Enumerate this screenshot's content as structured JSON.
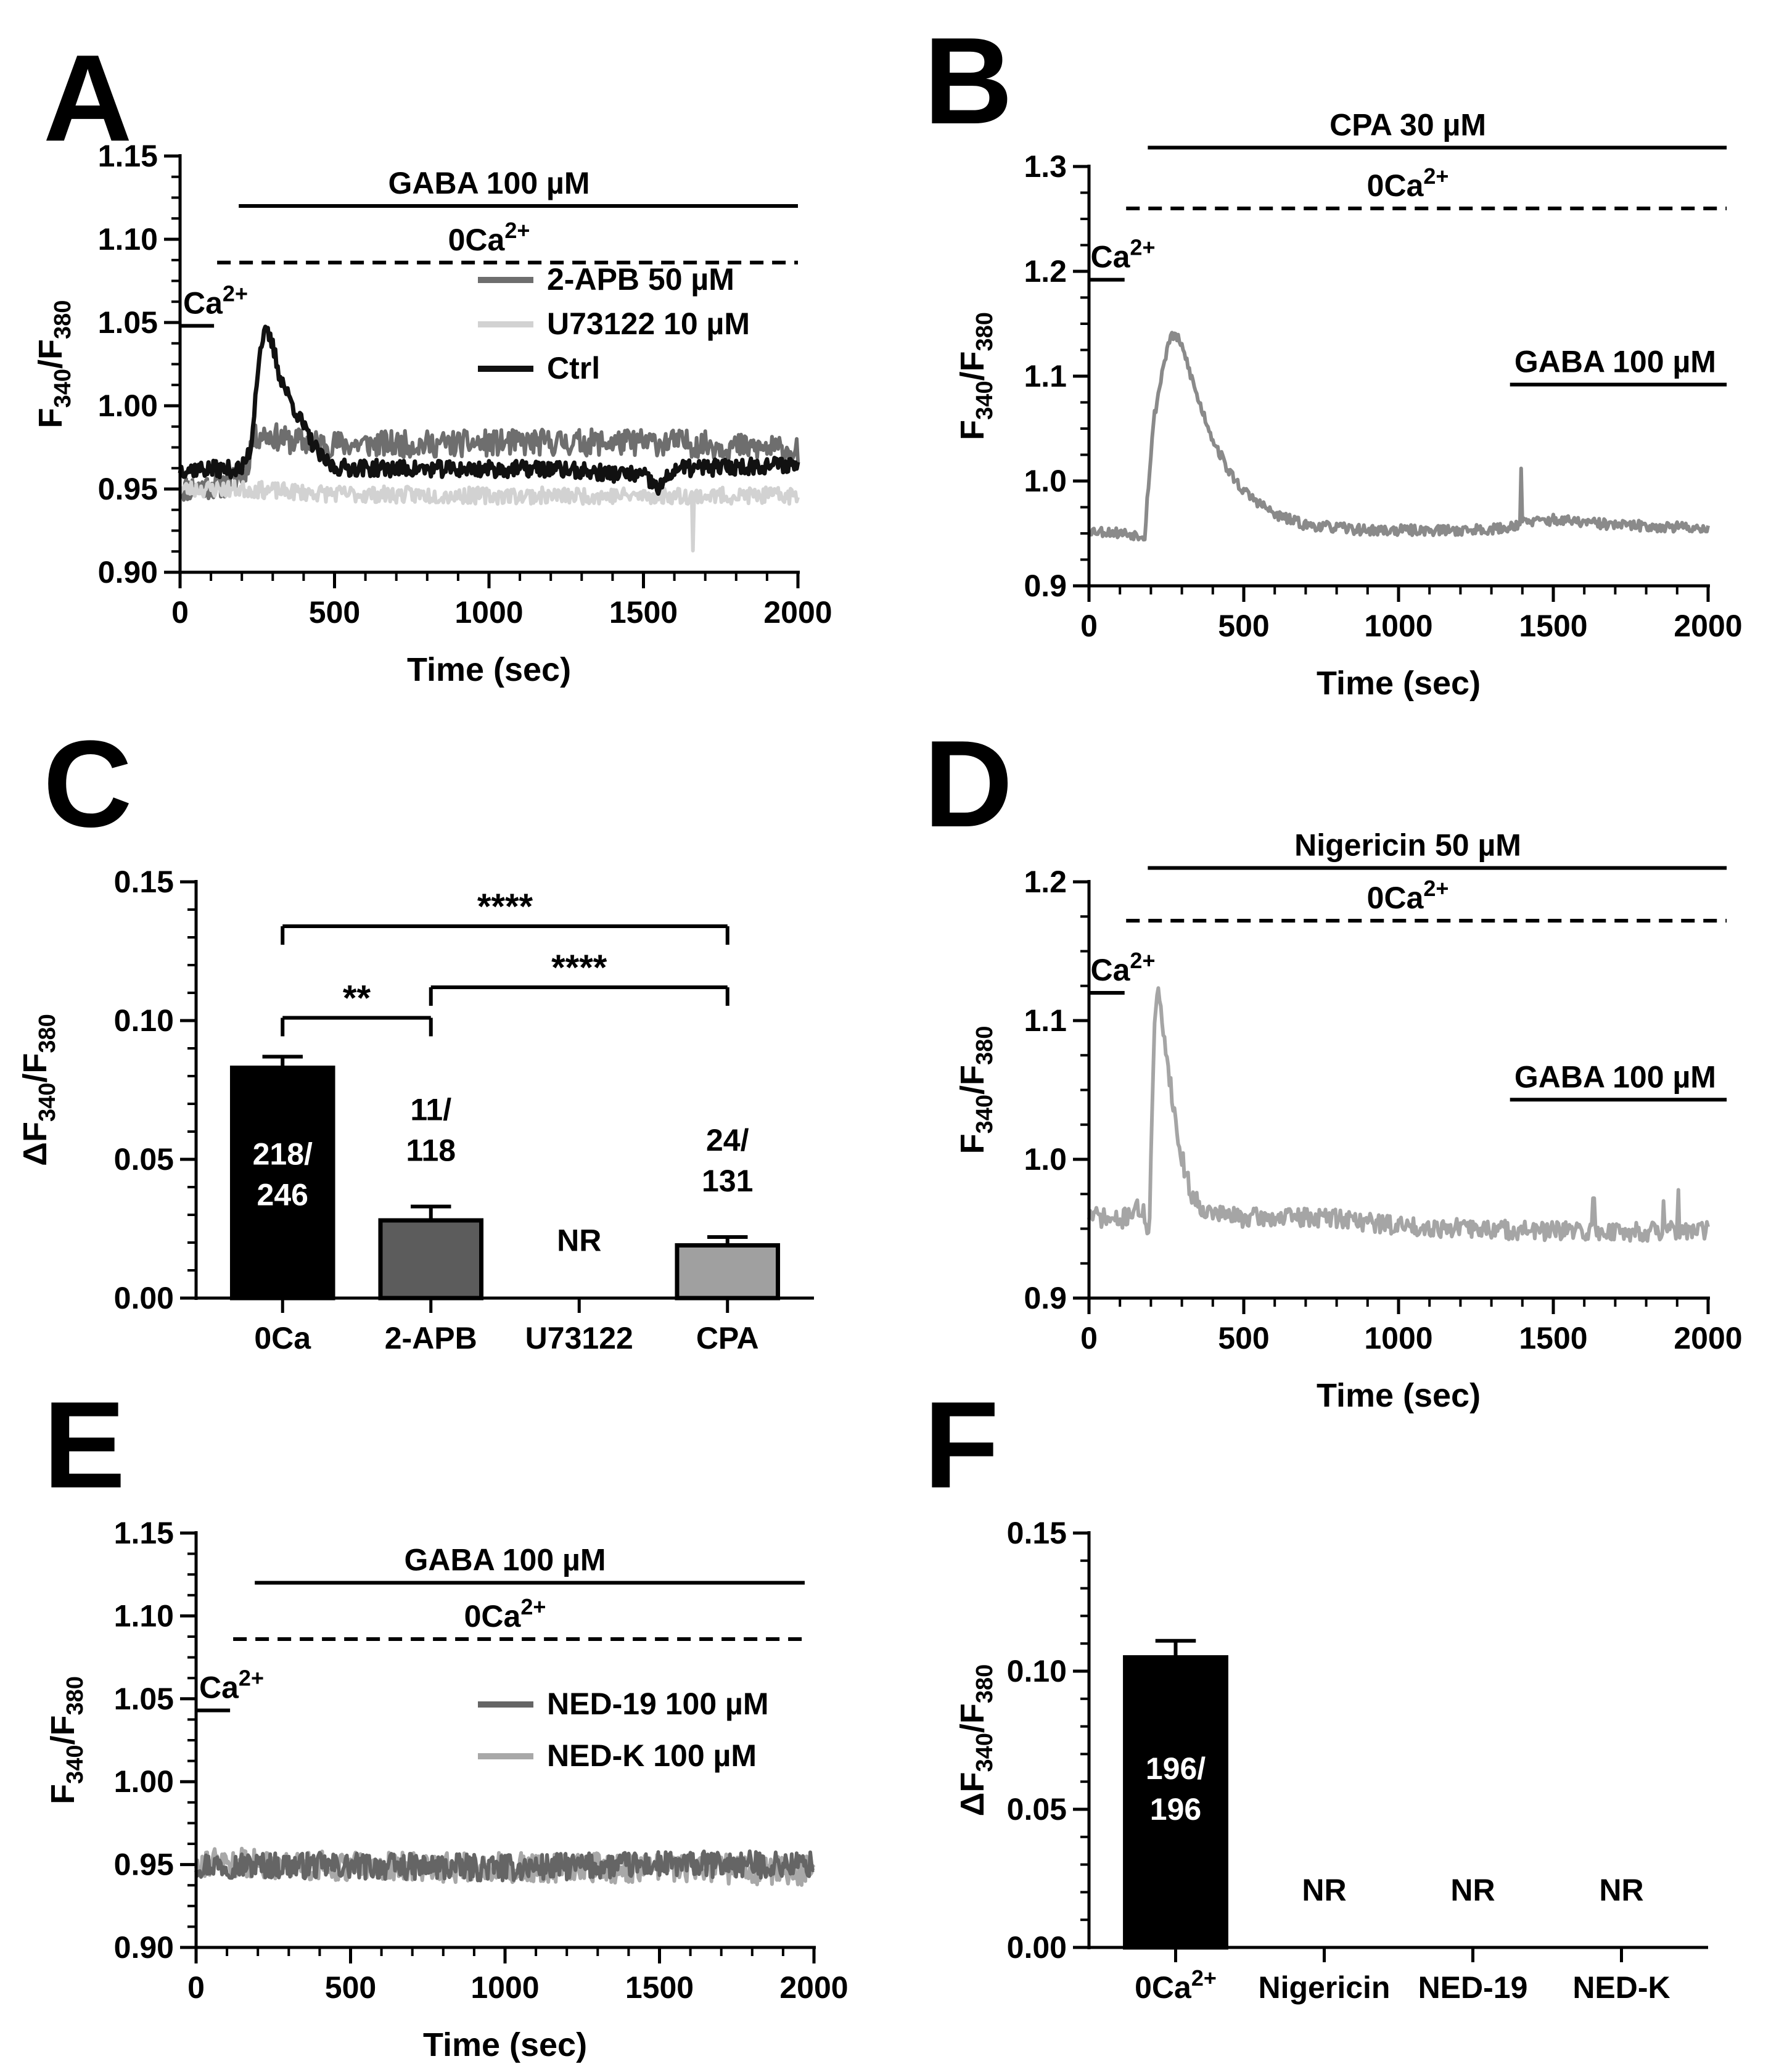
{
  "figure": {
    "panels": [
      "A",
      "B",
      "C",
      "D",
      "E",
      "F"
    ]
  },
  "colors": {
    "ctrl": "#111111",
    "twoapb": "#6e6e6e",
    "u73122": "#d2d2d2",
    "cpa": "#8a8a8a",
    "nigericin": "#a5a5a5",
    "ned19": "#656565",
    "nedk": "#a8a8a8",
    "bar_0ca": "#000000",
    "bar_2apb": "#5c5c5c",
    "bar_cpa": "#a0a0a0"
  },
  "chart_data": [
    {
      "id": "A",
      "type": "line",
      "letter": "A",
      "xlabel": "Time (sec)",
      "ylabel_main": "F",
      "ylabel_sub1": "340",
      "ylabel_sep": "/F",
      "ylabel_sub2": "380",
      "xlim": [
        0,
        2000
      ],
      "ylim": [
        0.9,
        1.15
      ],
      "xticks": [
        0,
        500,
        1000,
        1500,
        2000
      ],
      "xtick_labels": [
        "0",
        "500",
        "1000",
        "1500",
        "2000"
      ],
      "yticks": [
        0.9,
        0.95,
        1.0,
        1.05,
        1.1,
        1.15
      ],
      "ytick_labels": [
        "0.90",
        "0.95",
        "1.00",
        "1.05",
        "1.10",
        "1.15"
      ],
      "annotations": [
        {
          "text": "GABA 100 µM",
          "x_start": 190,
          "x_end": 2000,
          "y": 1.12,
          "style": "solid",
          "text_x": 1000
        },
        {
          "text": "0Ca",
          "sup": "2+",
          "x_start": 120,
          "x_end": 2000,
          "y": 1.086,
          "style": "dashed",
          "text_x": 1000
        },
        {
          "text": "Ca",
          "sup": "2+",
          "x_start": 0,
          "x_end": 110,
          "y": 1.048,
          "style": "solid",
          "text_x": 10
        }
      ],
      "legend": [
        {
          "label": "2-APB 50 µM",
          "color_key": "twoapb"
        },
        {
          "label": "U73122 10 µM",
          "color_key": "u73122"
        },
        {
          "label": "Ctrl",
          "color_key": "ctrl"
        }
      ],
      "series": [
        {
          "name": "2-APB 50 µM",
          "color_key": "twoapb",
          "seed": 11,
          "noise": 0.008,
          "points": [
            [
              0,
              0.95
            ],
            [
              150,
              0.953
            ],
            [
              200,
              0.958
            ],
            [
              220,
              0.965
            ],
            [
              230,
              0.978
            ],
            [
              260,
              0.983
            ],
            [
              300,
              0.982
            ],
            [
              350,
              0.979
            ],
            [
              500,
              0.977
            ],
            [
              800,
              0.977
            ],
            [
              1200,
              0.978
            ],
            [
              1600,
              0.978
            ],
            [
              2000,
              0.973
            ]
          ]
        },
        {
          "name": "U73122 10 µM",
          "color_key": "u73122",
          "seed": 23,
          "noise": 0.005,
          "points": [
            [
              0,
              0.95
            ],
            [
              200,
              0.95
            ],
            [
              500,
              0.947
            ],
            [
              1000,
              0.946
            ],
            [
              1500,
              0.946
            ],
            [
              1650,
              0.946
            ],
            [
              2000,
              0.946
            ]
          ],
          "spikes": [
            [
              1660,
              0.913
            ]
          ]
        },
        {
          "name": "Ctrl",
          "color_key": "ctrl",
          "seed": 37,
          "noise": 0.005,
          "points": [
            [
              0,
              0.962
            ],
            [
              200,
              0.962
            ],
            [
              230,
              0.975
            ],
            [
              250,
              1.02
            ],
            [
              265,
              1.04
            ],
            [
              280,
              1.044
            ],
            [
              300,
              1.036
            ],
            [
              320,
              1.02
            ],
            [
              350,
              1.006
            ],
            [
              380,
              0.995
            ],
            [
              420,
              0.98
            ],
            [
              460,
              0.968
            ],
            [
              500,
              0.963
            ],
            [
              800,
              0.962
            ],
            [
              1200,
              0.962
            ],
            [
              1500,
              0.958
            ],
            [
              1550,
              0.95
            ],
            [
              1600,
              0.962
            ],
            [
              2000,
              0.965
            ]
          ]
        }
      ]
    },
    {
      "id": "B",
      "type": "line",
      "letter": "B",
      "xlabel": "Time (sec)",
      "ylabel_main": "F",
      "ylabel_sub1": "340",
      "ylabel_sep": "/F",
      "ylabel_sub2": "380",
      "xlim": [
        0,
        2000
      ],
      "ylim": [
        0.9,
        1.3
      ],
      "xticks": [
        0,
        500,
        1000,
        1500,
        2000
      ],
      "xtick_labels": [
        "0",
        "500",
        "1000",
        "1500",
        "2000"
      ],
      "yticks": [
        0.9,
        1.0,
        1.1,
        1.2,
        1.3
      ],
      "ytick_labels": [
        "0.9",
        "1.0",
        "1.1",
        "1.2",
        "1.3"
      ],
      "annotations": [
        {
          "text": "CPA 30 µM",
          "x_start": 190,
          "x_end": 2060,
          "y": 1.318,
          "style": "solid",
          "text_x": 1030
        },
        {
          "text": "0Ca",
          "sup": "2+",
          "x_start": 120,
          "x_end": 2060,
          "y": 1.26,
          "style": "dashed",
          "text_x": 1030
        },
        {
          "text": "Ca",
          "sup": "2+",
          "x_start": 0,
          "x_end": 115,
          "y": 1.192,
          "style": "solid",
          "text_x": 5
        },
        {
          "text": "GABA 100 µM",
          "x_start": 1360,
          "x_end": 2060,
          "y": 1.092,
          "style": "solid",
          "text_x": 1700
        }
      ],
      "legend": [],
      "series": [
        {
          "name": "CPA 30 µM",
          "color_key": "cpa",
          "seed": 53,
          "noise": 0.005,
          "points": [
            [
              0,
              0.953
            ],
            [
              120,
              0.95
            ],
            [
              180,
              0.948
            ],
            [
              190,
              0.99
            ],
            [
              210,
              1.06
            ],
            [
              240,
              1.11
            ],
            [
              260,
              1.135
            ],
            [
              280,
              1.14
            ],
            [
              310,
              1.12
            ],
            [
              350,
              1.08
            ],
            [
              400,
              1.04
            ],
            [
              450,
              1.01
            ],
            [
              500,
              0.99
            ],
            [
              600,
              0.968
            ],
            [
              700,
              0.958
            ],
            [
              900,
              0.953
            ],
            [
              1200,
              0.953
            ],
            [
              1350,
              0.955
            ],
            [
              1390,
              0.96
            ],
            [
              1500,
              0.963
            ],
            [
              1700,
              0.958
            ],
            [
              2000,
              0.955
            ]
          ],
          "spikes": [
            [
              1395,
              1.012
            ]
          ]
        }
      ]
    },
    {
      "id": "C",
      "type": "bar",
      "letter": "C",
      "ylabel_main": "ΔF",
      "ylabel_sub1": "340",
      "ylabel_sep": "/F",
      "ylabel_sub2": "380",
      "ylim": [
        0,
        0.15
      ],
      "yticks": [
        0.0,
        0.05,
        0.1,
        0.15
      ],
      "ytick_labels": [
        "0.00",
        "0.05",
        "0.10",
        "0.15"
      ],
      "categories": [
        "0Ca",
        "2-APB",
        "U73122",
        "CPA"
      ],
      "values": [
        0.083,
        0.028,
        0,
        0.019
      ],
      "errors": [
        0.004,
        0.005,
        0,
        0.003
      ],
      "fill_keys": [
        "bar_0ca",
        "bar_2apb",
        "none",
        "bar_cpa"
      ],
      "bar_labels": [
        {
          "lines": [
            "218/",
            "246"
          ],
          "place": "inside"
        },
        {
          "lines": [
            "11/",
            "118"
          ],
          "place": "above"
        },
        {
          "lines": [
            "NR"
          ],
          "place": "nr"
        },
        {
          "lines": [
            "24/",
            "131"
          ],
          "place": "above"
        }
      ],
      "significance": [
        {
          "from": 0,
          "to": 3,
          "y": 0.134,
          "text": "****",
          "drop_from": 0.089,
          "drop_to": 0.134
        },
        {
          "from": 1,
          "to": 3,
          "y": 0.112,
          "text": "****",
          "drop_from": 0.1,
          "drop_to": 0.112
        },
        {
          "from": 0,
          "to": 1,
          "y": 0.101,
          "text": "**",
          "drop_from": 0.095,
          "drop_to": 0.094
        }
      ]
    },
    {
      "id": "D",
      "type": "line",
      "letter": "D",
      "xlabel": "Time (sec)",
      "ylabel_main": "F",
      "ylabel_sub1": "340",
      "ylabel_sep": "/F",
      "ylabel_sub2": "380",
      "xlim": [
        0,
        2000
      ],
      "ylim": [
        0.9,
        1.2
      ],
      "xticks": [
        0,
        500,
        1000,
        1500,
        2000
      ],
      "xtick_labels": [
        "0",
        "500",
        "1000",
        "1500",
        "2000"
      ],
      "yticks": [
        0.9,
        1.0,
        1.1,
        1.2
      ],
      "ytick_labels": [
        "0.9",
        "1.0",
        "1.1",
        "1.2"
      ],
      "annotations": [
        {
          "text": "Nigericin 50 µM",
          "x_start": 190,
          "x_end": 2060,
          "y": 1.21,
          "style": "solid",
          "text_x": 1030
        },
        {
          "text": "0Ca",
          "sup": "2+",
          "x_start": 120,
          "x_end": 2060,
          "y": 1.172,
          "style": "dashed",
          "text_x": 1030
        },
        {
          "text": "Ca",
          "sup": "2+",
          "x_start": 0,
          "x_end": 115,
          "y": 1.12,
          "style": "solid",
          "text_x": 5
        },
        {
          "text": "GABA 100 µM",
          "x_start": 1360,
          "x_end": 2060,
          "y": 1.043,
          "style": "solid",
          "text_x": 1700
        }
      ],
      "legend": [],
      "series": [
        {
          "name": "Nigericin 50 µM",
          "color_key": "nigericin",
          "seed": 71,
          "noise": 0.007,
          "points": [
            [
              0,
              0.96
            ],
            [
              100,
              0.955
            ],
            [
              150,
              0.965
            ],
            [
              180,
              0.96
            ],
            [
              195,
              0.945
            ],
            [
              205,
              1.05
            ],
            [
              215,
              1.11
            ],
            [
              225,
              1.118
            ],
            [
              240,
              1.095
            ],
            [
              260,
              1.06
            ],
            [
              290,
              1.01
            ],
            [
              330,
              0.975
            ],
            [
              380,
              0.962
            ],
            [
              500,
              0.958
            ],
            [
              800,
              0.958
            ],
            [
              1000,
              0.952
            ],
            [
              1500,
              0.948
            ],
            [
              2000,
              0.948
            ]
          ],
          "spikes": [
            [
              1630,
              0.972
            ],
            [
              1855,
              0.97
            ],
            [
              1905,
              0.978
            ]
          ]
        }
      ]
    },
    {
      "id": "E",
      "type": "line",
      "letter": "E",
      "xlabel": "Time (sec)",
      "ylabel_main": "F",
      "ylabel_sub1": "340",
      "ylabel_sep": "/F",
      "ylabel_sub2": "380",
      "xlim": [
        0,
        2000
      ],
      "ylim": [
        0.9,
        1.15
      ],
      "xticks": [
        0,
        500,
        1000,
        1500,
        2000
      ],
      "xtick_labels": [
        "0",
        "500",
        "1000",
        "1500",
        "2000"
      ],
      "yticks": [
        0.9,
        0.95,
        1.0,
        1.05,
        1.1,
        1.15
      ],
      "ytick_labels": [
        "0.90",
        "0.95",
        "1.00",
        "1.05",
        "1.10",
        "1.15"
      ],
      "annotations": [
        {
          "text": "GABA 100 µM",
          "x_start": 190,
          "x_end": 1970,
          "y": 1.12,
          "style": "solid",
          "text_x": 1000
        },
        {
          "text": "0Ca",
          "sup": "2+",
          "x_start": 120,
          "x_end": 1970,
          "y": 1.086,
          "style": "dashed",
          "text_x": 1000
        },
        {
          "text": "Ca",
          "sup": "2+",
          "x_start": 0,
          "x_end": 110,
          "y": 1.043,
          "style": "solid",
          "text_x": 10
        }
      ],
      "legend": [
        {
          "label": "NED-19 100 µM",
          "color_key": "ned19"
        },
        {
          "label": "NED-K 100 µM",
          "color_key": "nedk"
        }
      ],
      "series": [
        {
          "name": "NED-K 100 µM",
          "color_key": "nedk",
          "seed": 91,
          "noise": 0.009,
          "points": [
            [
              0,
              0.952
            ],
            [
              500,
              0.949
            ],
            [
              1000,
              0.948
            ],
            [
              1500,
              0.948
            ],
            [
              2000,
              0.946
            ]
          ]
        },
        {
          "name": "NED-19 100 µM",
          "color_key": "ned19",
          "seed": 97,
          "noise": 0.008,
          "points": [
            [
              0,
              0.95
            ],
            [
              500,
              0.949
            ],
            [
              1000,
              0.948
            ],
            [
              1500,
              0.95
            ],
            [
              2000,
              0.95
            ]
          ]
        }
      ]
    },
    {
      "id": "F",
      "type": "bar",
      "letter": "F",
      "ylabel_main": "ΔF",
      "ylabel_sub1": "340",
      "ylabel_sep": "/F",
      "ylabel_sub2": "380",
      "ylim": [
        0,
        0.15
      ],
      "yticks": [
        0.0,
        0.05,
        0.1,
        0.15
      ],
      "ytick_labels": [
        "0.00",
        "0.05",
        "0.10",
        "0.15"
      ],
      "categories": [
        "0Ca",
        "Nigericin",
        "NED-19",
        "NED-K"
      ],
      "category_sups": [
        "2+",
        "",
        "",
        ""
      ],
      "values": [
        0.105,
        0,
        0,
        0
      ],
      "errors": [
        0.006,
        0,
        0,
        0
      ],
      "fill_keys": [
        "bar_0ca",
        "none",
        "none",
        "none"
      ],
      "bar_labels": [
        {
          "lines": [
            "196/",
            "196"
          ],
          "place": "inside"
        },
        {
          "lines": [
            "NR"
          ],
          "place": "nr"
        },
        {
          "lines": [
            "NR"
          ],
          "place": "nr"
        },
        {
          "lines": [
            "NR"
          ],
          "place": "nr"
        }
      ],
      "significance": []
    }
  ]
}
